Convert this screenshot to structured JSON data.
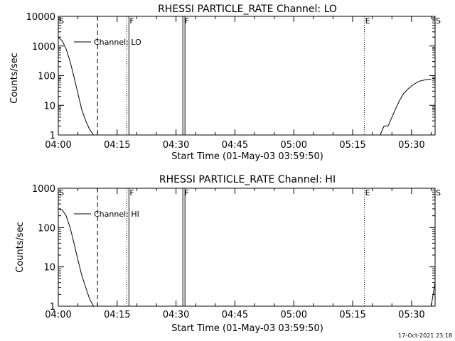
{
  "chart_data": [
    {
      "type": "line",
      "title": "RHESSI PARTICLE_RATE Channel: LO",
      "xlabel": "Start Time (01-May-03 03:59:50)",
      "ylabel": "Counts/sec",
      "y_scale": "log",
      "xlim": [
        "04:00",
        "05:36"
      ],
      "ylim": [
        1,
        10000
      ],
      "x_ticks": [
        "04:00",
        "04:15",
        "04:30",
        "04:45",
        "05:00",
        "05:15",
        "05:30"
      ],
      "y_ticks": [
        "1",
        "10",
        "100",
        "1000",
        "10000"
      ],
      "legend": {
        "entries": [
          "Channel: LO"
        ],
        "placement": "top-left"
      },
      "series": [
        {
          "name": "Channel: LO",
          "segments": [
            {
              "x": [
                "04:00",
                "04:01",
                "04:02",
                "04:03",
                "04:04",
                "04:05",
                "04:06",
                "04:07",
                "04:08",
                "04:09",
                "04:10"
              ],
              "y": [
                2000,
                1500,
                800,
                300,
                90,
                25,
                7,
                3,
                1.5,
                1,
                1
              ]
            },
            {
              "x": [
                "05:22",
                "05:23",
                "05:24",
                "05:25",
                "05:26",
                "05:27",
                "05:28",
                "05:29",
                "05:30",
                "05:31",
                "05:32",
                "05:33",
                "05:34",
                "05:35"
              ],
              "y": [
                1,
                2,
                2,
                4,
                8,
                15,
                25,
                35,
                45,
                55,
                65,
                70,
                75,
                75
              ]
            }
          ]
        }
      ],
      "markers": [
        {
          "label": "S",
          "x": "04:00",
          "style": "none"
        },
        {
          "label": "",
          "x": "04:10",
          "style": "dashed"
        },
        {
          "label": "F",
          "x": "04:18",
          "style": "dotted-solid"
        },
        {
          "label": "F",
          "x": "04:32",
          "style": "double-solid"
        },
        {
          "label": "E",
          "x": "05:18",
          "style": "dotted"
        },
        {
          "label": "S",
          "x": "05:36",
          "style": "dash-dot"
        }
      ]
    },
    {
      "type": "line",
      "title": "RHESSI PARTICLE_RATE Channel: HI",
      "xlabel": "Start Time (01-May-03 03:59:50)",
      "ylabel": "Counts/sec",
      "y_scale": "log",
      "xlim": [
        "04:00",
        "05:36"
      ],
      "ylim": [
        1,
        1000
      ],
      "x_ticks": [
        "04:00",
        "04:15",
        "04:30",
        "04:45",
        "05:00",
        "05:15",
        "05:30"
      ],
      "y_ticks": [
        "1",
        "10",
        "100",
        "1000"
      ],
      "legend": {
        "entries": [
          "Channel: HI"
        ],
        "placement": "top-left"
      },
      "series": [
        {
          "name": "Channel: HI",
          "segments": [
            {
              "x": [
                "04:00",
                "04:01",
                "04:02",
                "04:03",
                "04:04",
                "04:05",
                "04:06",
                "04:07",
                "04:08",
                "04:09",
                "04:10"
              ],
              "y": [
                300,
                280,
                200,
                100,
                40,
                15,
                6,
                3,
                1.5,
                1,
                1
              ]
            },
            {
              "x": [
                "05:35",
                "05:36"
              ],
              "y": [
                1,
                4
              ]
            }
          ]
        }
      ],
      "markers": [
        {
          "label": "S",
          "x": "04:00",
          "style": "none"
        },
        {
          "label": "",
          "x": "04:10",
          "style": "dashed"
        },
        {
          "label": "F",
          "x": "04:18",
          "style": "dotted-solid"
        },
        {
          "label": "F",
          "x": "04:32",
          "style": "double-solid"
        },
        {
          "label": "E",
          "x": "05:18",
          "style": "dotted"
        },
        {
          "label": "S",
          "x": "05:36",
          "style": "dash-dot"
        }
      ]
    }
  ],
  "footer": {
    "timestamp": "17-Oct-2021 23:18"
  }
}
